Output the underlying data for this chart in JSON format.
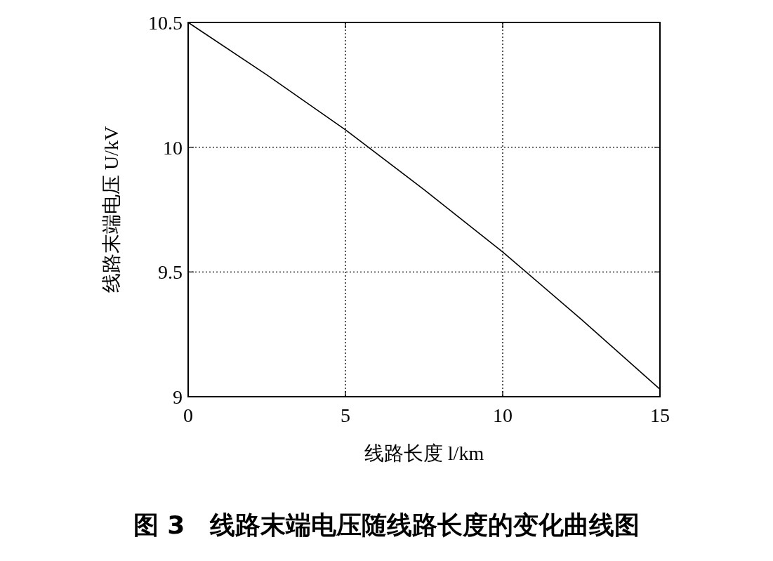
{
  "chart_data": {
    "type": "line",
    "title": "图 3　线路末端电压随线路长度的变化曲线图",
    "xlabel": "线路长度 l/km",
    "ylabel": "线路末端电压 U/kV",
    "x": [
      0,
      2.5,
      5,
      7.5,
      10,
      12.5,
      15
    ],
    "series": [
      {
        "color": "#000000",
        "values": [
          10.5,
          10.29,
          10.07,
          9.83,
          9.58,
          9.31,
          9.03
        ]
      }
    ],
    "xlim": [
      0,
      15
    ],
    "ylim": [
      9,
      10.5
    ],
    "xticks": [
      0,
      5,
      10,
      15
    ],
    "yticks": [
      9,
      9.5,
      10,
      10.5
    ],
    "grid": true
  }
}
